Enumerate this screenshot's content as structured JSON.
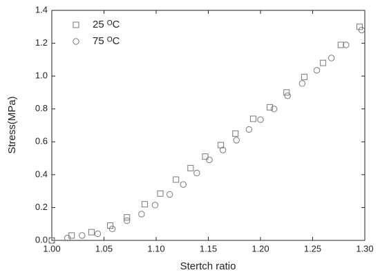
{
  "chart_data": {
    "type": "scatter",
    "xlabel": "Stertch ratio",
    "ylabel": "Stress(MPa)",
    "xlim": [
      1.0,
      1.3
    ],
    "ylim": [
      0,
      1.4
    ],
    "xticks": [
      {
        "value": 1.0,
        "label": "1.00"
      },
      {
        "value": 1.05,
        "label": "1.05"
      },
      {
        "value": 1.1,
        "label": "1.10"
      },
      {
        "value": 1.15,
        "label": "1.15"
      },
      {
        "value": 1.2,
        "label": "1.20"
      },
      {
        "value": 1.25,
        "label": "1.25"
      },
      {
        "value": 1.3,
        "label": "1.30"
      }
    ],
    "yticks": [
      {
        "value": 0,
        "label": "0.0"
      },
      {
        "value": 0.2,
        "label": "0.2"
      },
      {
        "value": 0.4,
        "label": "0.4"
      },
      {
        "value": 0.6,
        "label": "0.6"
      },
      {
        "value": 0.8,
        "label": "0.8"
      },
      {
        "value": 1.0,
        "label": "1.0"
      },
      {
        "value": 1.2,
        "label": "1.2"
      },
      {
        "value": 1.4,
        "label": "1.4"
      }
    ],
    "legend": "upper left",
    "series": [
      {
        "name": "25 ᴼC",
        "marker": "square",
        "color": "#777777",
        "x": [
          1.0,
          1.019,
          1.038,
          1.056,
          1.072,
          1.089,
          1.104,
          1.119,
          1.133,
          1.147,
          1.162,
          1.176,
          1.193,
          1.209,
          1.225,
          1.242,
          1.26,
          1.277,
          1.295
        ],
        "values": [
          0.0,
          0.03,
          0.05,
          0.09,
          0.14,
          0.22,
          0.285,
          0.37,
          0.44,
          0.51,
          0.58,
          0.65,
          0.74,
          0.81,
          0.9,
          0.995,
          1.08,
          1.19,
          1.3
        ]
      },
      {
        "name": "75 ᴼC",
        "marker": "circle",
        "color": "#777777",
        "x": [
          1.0,
          1.015,
          1.029,
          1.044,
          1.058,
          1.072,
          1.086,
          1.099,
          1.113,
          1.126,
          1.139,
          1.151,
          1.164,
          1.177,
          1.189,
          1.2,
          1.213,
          1.226,
          1.24,
          1.254,
          1.268,
          1.282,
          1.297
        ],
        "values": [
          0.0,
          0.015,
          0.03,
          0.04,
          0.07,
          0.12,
          0.16,
          0.215,
          0.28,
          0.34,
          0.41,
          0.49,
          0.55,
          0.61,
          0.675,
          0.735,
          0.8,
          0.88,
          0.955,
          1.035,
          1.11,
          1.19,
          1.28
        ]
      }
    ]
  }
}
